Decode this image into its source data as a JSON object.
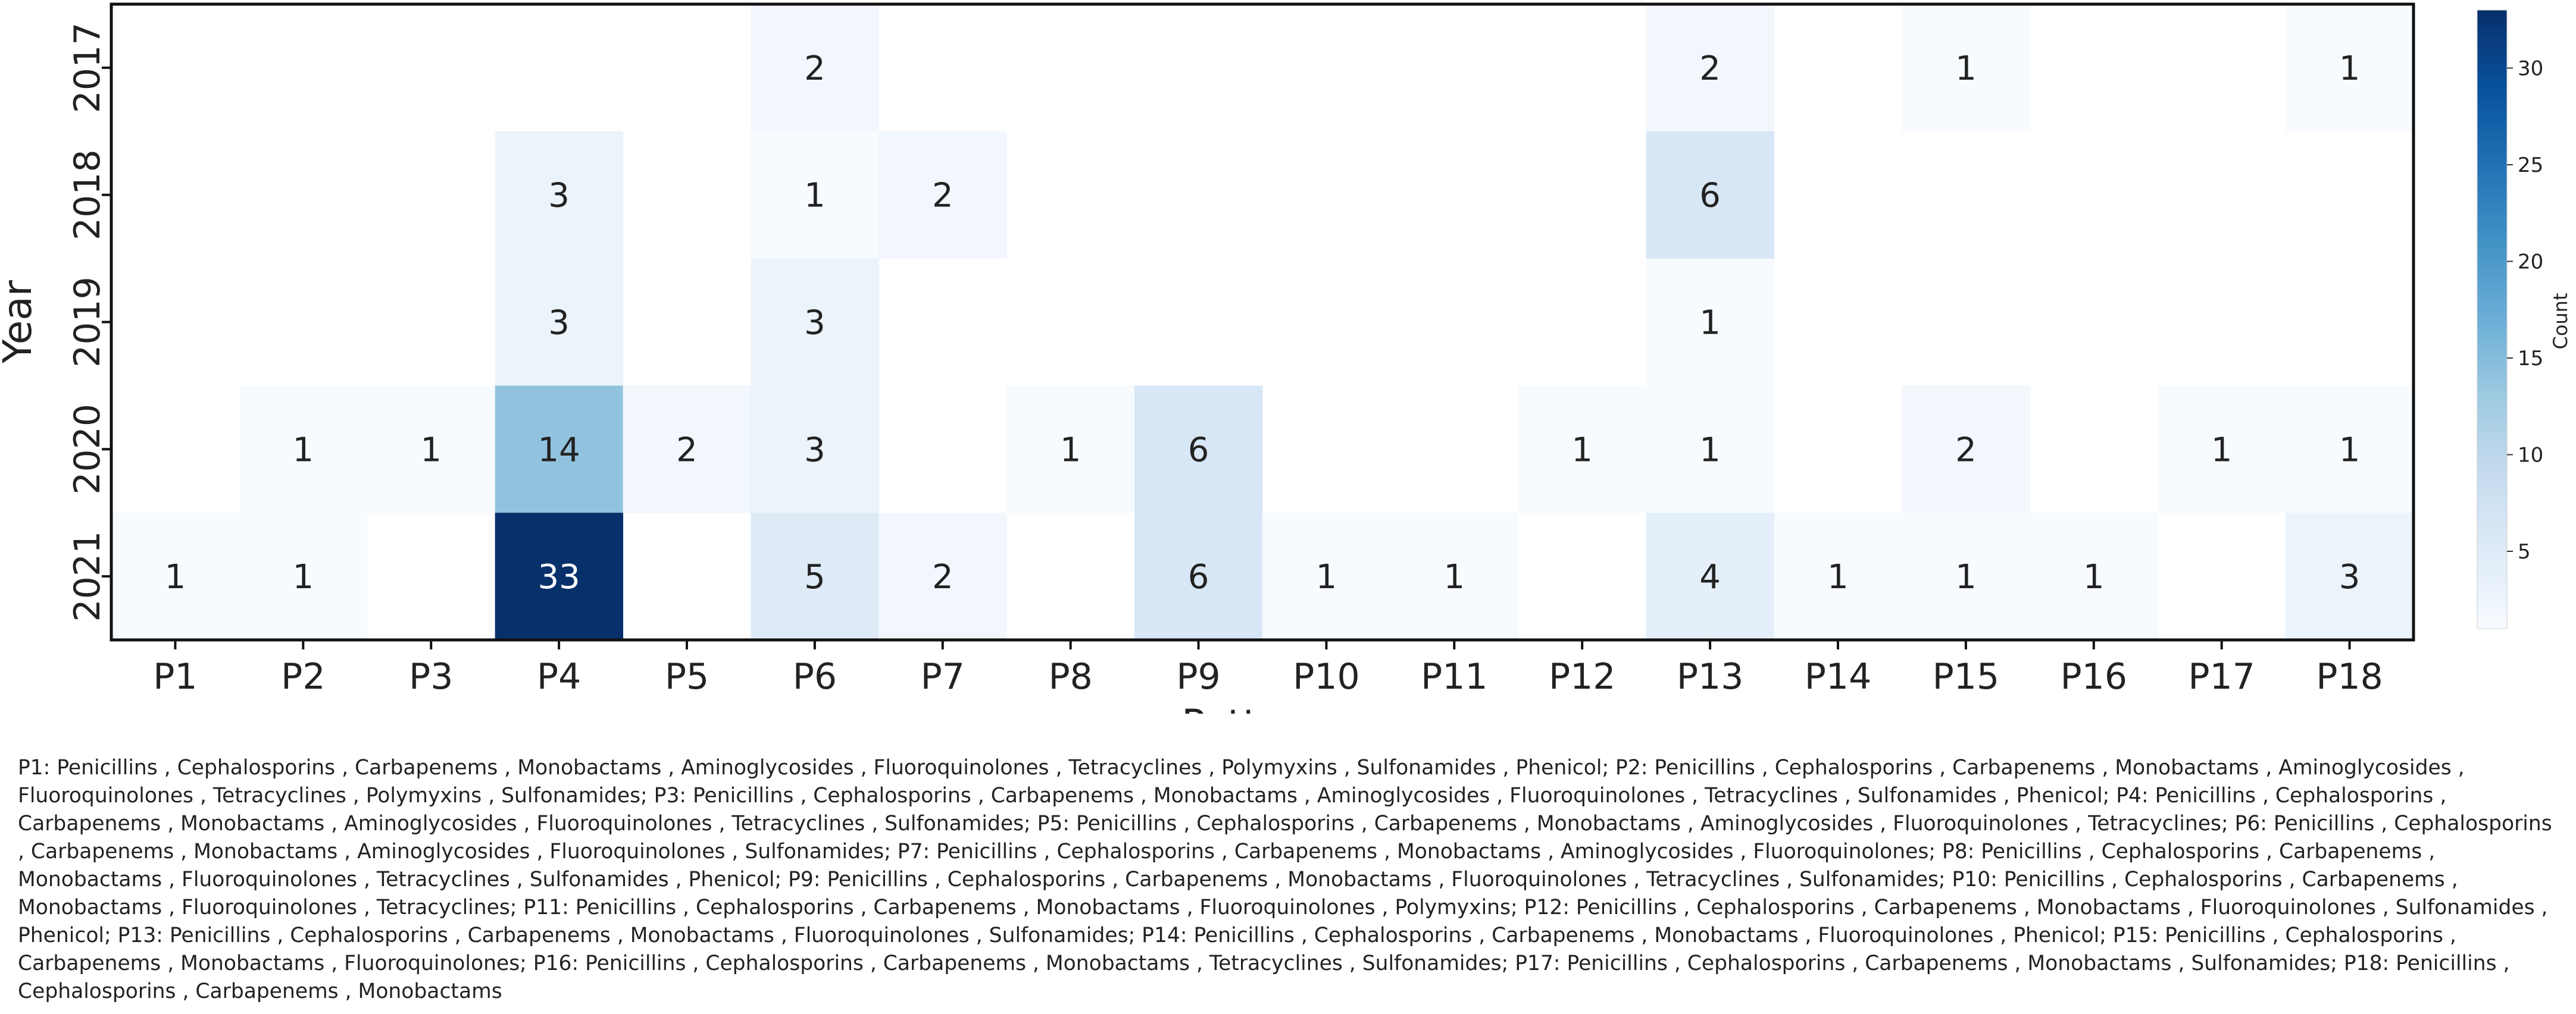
{
  "chart_data": {
    "type": "heatmap",
    "xlabel": "Patterns",
    "ylabel": "Year",
    "categories": [
      "P1",
      "P2",
      "P3",
      "P4",
      "P5",
      "P6",
      "P7",
      "P8",
      "P9",
      "P10",
      "P11",
      "P12",
      "P13",
      "P14",
      "P15",
      "P16",
      "P17",
      "P18"
    ],
    "rows": [
      "2017",
      "2018",
      "2019",
      "2020",
      "2021"
    ],
    "values": [
      [
        null,
        null,
        null,
        null,
        null,
        2,
        null,
        null,
        null,
        null,
        null,
        null,
        2,
        null,
        1,
        null,
        null,
        1
      ],
      [
        null,
        null,
        null,
        3,
        null,
        1,
        2,
        null,
        null,
        null,
        null,
        null,
        6,
        null,
        null,
        null,
        null,
        null
      ],
      [
        null,
        null,
        null,
        3,
        null,
        3,
        null,
        null,
        null,
        null,
        null,
        null,
        1,
        null,
        null,
        null,
        null,
        null
      ],
      [
        null,
        1,
        1,
        14,
        2,
        3,
        null,
        1,
        6,
        null,
        null,
        1,
        1,
        null,
        2,
        null,
        1,
        1
      ],
      [
        1,
        1,
        null,
        33,
        null,
        5,
        2,
        null,
        6,
        1,
        1,
        null,
        4,
        1,
        1,
        1,
        null,
        3
      ]
    ],
    "colorbar": {
      "label": "Count",
      "ticks": [
        5,
        10,
        15,
        20,
        25,
        30
      ],
      "min": 1,
      "max": 33
    },
    "colorscale": "Blues"
  },
  "legend_note": "P1: Penicillins , Cephalosporins , Carbapenems , Monobactams , Aminoglycosides , Fluoroquinolones , Tetracyclines , Polymyxins , Sulfonamides , Phenicol; P2: Penicillins , Cephalosporins , Carbapenems , Monobactams , Aminoglycosides , Fluoroquinolones , Tetracyclines , Polymyxins , Sulfonamides; P3: Penicillins , Cephalosporins , Carbapenems , Monobactams , Aminoglycosides , Fluoroquinolones , Tetracyclines , Sulfonamides , Phenicol; P4: Penicillins , Cephalosporins , Carbapenems , Monobactams , Aminoglycosides , Fluoroquinolones , Tetracyclines , Sulfonamides; P5: Penicillins , Cephalosporins , Carbapenems , Monobactams , Aminoglycosides , Fluoroquinolones , Tetracyclines; P6: Penicillins , Cephalosporins , Carbapenems , Monobactams , Aminoglycosides , Fluoroquinolones , Sulfonamides; P7: Penicillins , Cephalosporins , Carbapenems , Monobactams , Aminoglycosides , Fluoroquinolones; P8: Penicillins , Cephalosporins , Carbapenems , Monobactams , Fluoroquinolones , Tetracyclines , Sulfonamides , Phenicol; P9: Penicillins , Cephalosporins , Carbapenems , Monobactams , Fluoroquinolones , Tetracyclines , Sulfonamides; P10: Penicillins , Cephalosporins , Carbapenems , Monobactams , Fluoroquinolones , Tetracyclines; P11: Penicillins , Cephalosporins , Carbapenems , Monobactams , Fluoroquinolones , Polymyxins; P12: Penicillins , Cephalosporins , Carbapenems , Monobactams , Fluoroquinolones , Sulfonamides , Phenicol; P13: Penicillins , Cephalosporins , Carbapenems , Monobactams , Fluoroquinolones , Sulfonamides; P14: Penicillins , Cephalosporins , Carbapenems , Monobactams , Fluoroquinolones , Phenicol; P15: Penicillins , Cephalosporins , Carbapenems , Monobactams , Fluoroquinolones; P16: Penicillins , Cephalosporins , Carbapenems , Monobactams , Tetracyclines , Sulfonamides; P17: Penicillins , Cephalosporins , Carbapenems , Monobactams , Sulfonamides; P18: Penicillins , Cephalosporins , Carbapenems , Monobactams"
}
